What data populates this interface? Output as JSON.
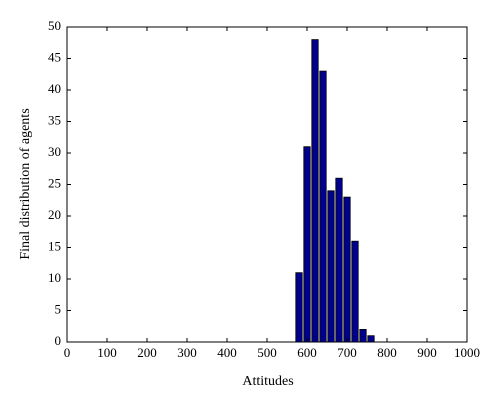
{
  "chart_data": {
    "type": "bar",
    "x_label": "Attitudes",
    "y_label": "Final distribution of agents",
    "x": [
      580,
      600,
      620,
      640,
      660,
      680,
      700,
      720,
      740,
      760
    ],
    "values": [
      11,
      31,
      48,
      43,
      24,
      26,
      23,
      16,
      2,
      1
    ],
    "color": "#00008b",
    "xlim": [
      0,
      1000
    ],
    "xticks": [
      0,
      100,
      200,
      300,
      400,
      500,
      600,
      700,
      800,
      900,
      1000
    ],
    "ylim": [
      0,
      50
    ],
    "yticks": [
      0,
      5,
      10,
      15,
      20,
      25,
      30,
      35,
      40,
      45,
      50
    ],
    "grid": false
  }
}
